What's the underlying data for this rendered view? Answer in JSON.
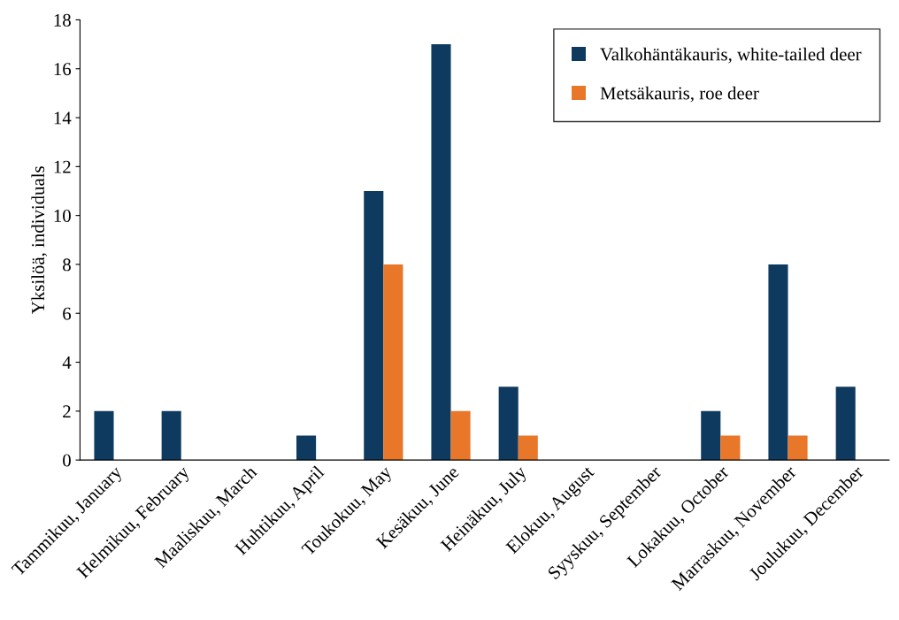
{
  "chart_data": {
    "type": "bar",
    "ylabel": "Yksilöä, individuals",
    "categories": [
      "Tammikuu, January",
      "Helmikuu, February",
      "Maaliskuu, March",
      "Huhtikuu, April",
      "Toukokuu, May",
      "Kesäkuu, June",
      "Heinäkuu, July",
      "Elokuu, August",
      "Syyskuu, September",
      "Lokakuu, October",
      "Marraskuu, November",
      "Joulukuu, December"
    ],
    "series": [
      {
        "name": "Valkohäntäkauris, white-tailed deer",
        "color": "#0e3a5f",
        "values": [
          2,
          2,
          0,
          1,
          11,
          17,
          3,
          0,
          0,
          2,
          8,
          3
        ]
      },
      {
        "name": "Metsäkauris, roe deer",
        "color": "#e8772a",
        "values": [
          0,
          0,
          0,
          0,
          8,
          2,
          1,
          0,
          0,
          1,
          1,
          0
        ]
      }
    ],
    "ylim": [
      0,
      18
    ],
    "yticks": [
      0,
      2,
      4,
      6,
      8,
      10,
      12,
      14,
      16,
      18
    ],
    "grid": false,
    "legend": "top right"
  }
}
